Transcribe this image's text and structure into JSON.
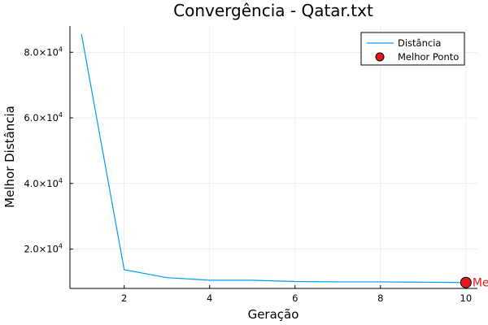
{
  "chart_data": {
    "type": "line",
    "title": "Convergência - Qatar.txt",
    "xlabel": "Geração",
    "ylabel": "Melhor Distância",
    "xlim": [
      0.73,
      10.27
    ],
    "ylim": [
      8000,
      88000
    ],
    "x_ticks": [
      2,
      4,
      6,
      8,
      10
    ],
    "y_ticks": [
      {
        "value": 20000,
        "mantissa": "2.0",
        "base": "×10",
        "exp": "4"
      },
      {
        "value": 40000,
        "mantissa": "4.0",
        "base": "×10",
        "exp": "4"
      },
      {
        "value": 60000,
        "mantissa": "6.0",
        "base": "×10",
        "exp": "4"
      },
      {
        "value": 80000,
        "mantissa": "8.0",
        "base": "×10",
        "exp": "4"
      }
    ],
    "grid": true,
    "legend_position": "top-right",
    "series": [
      {
        "name": "Distância",
        "kind": "line",
        "color": "#009af9",
        "x": [
          1,
          2,
          3,
          4,
          5,
          6,
          7,
          8,
          9,
          10
        ],
        "y": [
          85500,
          13700,
          11300,
          10500,
          10500,
          10100,
          10000,
          10000,
          9900,
          9800
        ]
      },
      {
        "name": "Melhor Ponto",
        "kind": "scatter",
        "color": "#e31a1c",
        "x": [
          10
        ],
        "y": [
          9800
        ]
      }
    ],
    "annotation": {
      "text": "Mel",
      "x": 10,
      "y": 9800,
      "color": "#e31a1c"
    }
  }
}
